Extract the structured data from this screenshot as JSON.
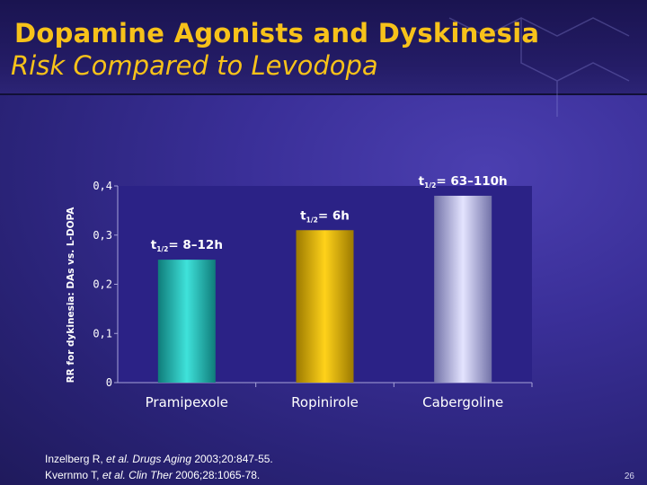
{
  "slide": {
    "title": "Dopamine Agonists and Dyskinesia",
    "subtitle": "Risk Compared to Levodopa",
    "page_number": "26"
  },
  "references": [
    {
      "pre": "Inzelberg R, ",
      "em": "et al. Drugs Aging",
      "post": " 2003;20:847-55."
    },
    {
      "pre": "Kvernmo T, ",
      "em": "et al. Clin Ther",
      "post": " 2006;28:1065-78."
    }
  ],
  "colors": {
    "title": "#f7c21a",
    "pramipexole": "#2ec9c1",
    "ropinirole": "#f2c300",
    "cabergoline": "#c9c9ee",
    "axis_text": "#ffffff"
  },
  "chart_data": {
    "type": "bar",
    "categories": [
      "Pramipexole",
      "Ropinirole",
      "Cabergoline"
    ],
    "values": [
      0.25,
      0.31,
      0.38
    ],
    "annotations": [
      {
        "prefix": "t",
        "sub": "1/2",
        "text": "= 8–12h"
      },
      {
        "prefix": "t",
        "sub": "1/2",
        "text": "= 6h"
      },
      {
        "prefix": "t",
        "sub": "1/2",
        "text": "= 63–110h"
      }
    ],
    "ylabel": "RR  for dykinesia: DAs vs. L-DOPA",
    "yticks": [
      "0",
      "0,1",
      "0,2",
      "0,3",
      "0,4"
    ],
    "ytick_values": [
      0,
      0.1,
      0.2,
      0.3,
      0.4
    ],
    "ylim": [
      0,
      0.4
    ],
    "grid": false
  }
}
